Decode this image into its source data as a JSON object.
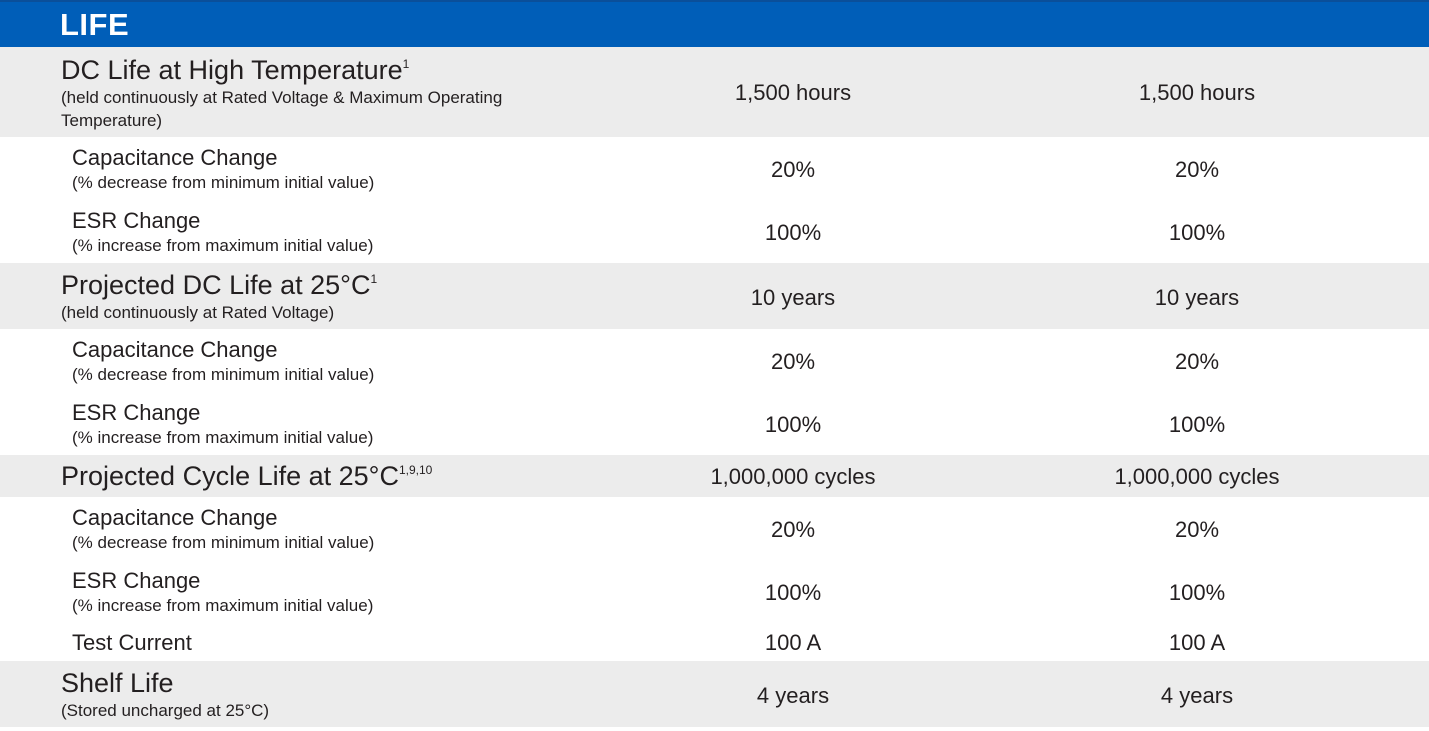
{
  "section_title": "LIFE",
  "rows": [
    {
      "title": "DC Life at High Temperature",
      "sup": "1",
      "note_lines": [
        "(held continuously at Rated Voltage & Maximum Operating",
        "Temperature)"
      ],
      "values": [
        "1,500 hours",
        "1,500 hours"
      ]
    },
    {
      "title": "Capacitance Change",
      "note_lines": [
        "(% decrease from minimum initial value)"
      ],
      "values": [
        "20%",
        "20%"
      ]
    },
    {
      "title": "ESR Change",
      "note_lines": [
        "(% increase from maximum initial value)"
      ],
      "values": [
        "100%",
        "100%"
      ]
    },
    {
      "title": "Projected DC Life at 25°C",
      "sup": "1",
      "note_lines": [
        "(held continuously at Rated Voltage)"
      ],
      "values": [
        "10 years",
        "10 years"
      ]
    },
    {
      "title": "Capacitance Change",
      "note_lines": [
        "(% decrease from minimum initial value)"
      ],
      "values": [
        "20%",
        "20%"
      ]
    },
    {
      "title": "ESR Change",
      "note_lines": [
        "(% increase from maximum initial value)"
      ],
      "values": [
        "100%",
        "100%"
      ]
    },
    {
      "title": "Projected Cycle Life at 25°C",
      "sup": "1,9,10",
      "values": [
        "1,000,000 cycles",
        "1,000,000 cycles"
      ]
    },
    {
      "title": "Capacitance Change",
      "note_lines": [
        "(% decrease from minimum initial value)"
      ],
      "values": [
        "20%",
        "20%"
      ]
    },
    {
      "title": "ESR Change",
      "note_lines": [
        "(% increase from maximum initial value)"
      ],
      "values": [
        "100%",
        "100%"
      ]
    },
    {
      "title": "Test Current",
      "values": [
        "100 A",
        "100 A"
      ]
    },
    {
      "title": "Shelf Life",
      "note_lines": [
        "(Stored uncharged at 25°C)"
      ],
      "values": [
        "4 years",
        "4 years"
      ]
    }
  ]
}
